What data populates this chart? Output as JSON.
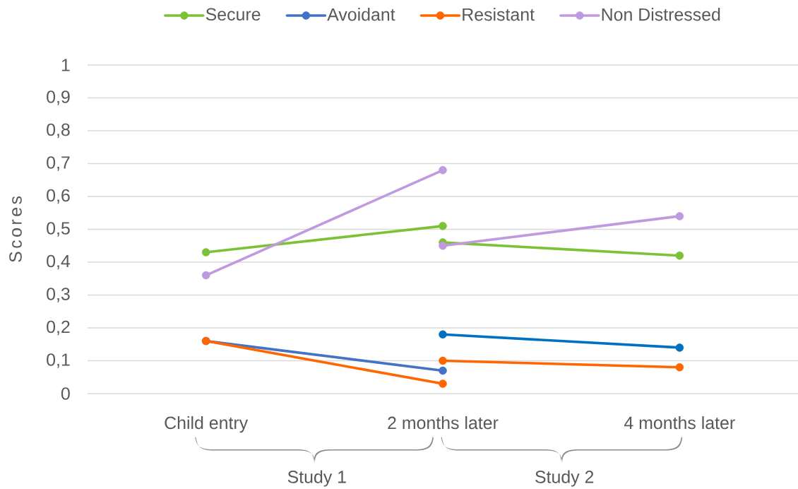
{
  "chart_data": {
    "type": "line",
    "ylabel": "Scores",
    "categories": [
      "Child entry",
      "2 months later",
      "4 months later"
    ],
    "series": [
      {
        "name": "Secure",
        "color": "#7dc236",
        "values": [
          0.43,
          0.51,
          null
        ]
      },
      {
        "name": "Avoidant",
        "color": "#4472c4",
        "values": [
          0.16,
          0.07,
          null
        ]
      },
      {
        "name": "Resistant",
        "color": "#ff6600",
        "values": [
          0.16,
          0.03,
          null
        ]
      },
      {
        "name": "Non Distressed",
        "color": "#c09ae0",
        "values": [
          0.36,
          0.68,
          null
        ]
      },
      {
        "color": "#7dc236",
        "values": [
          null,
          0.46,
          0.42
        ]
      },
      {
        "color": "#0070c0",
        "values": [
          null,
          0.18,
          0.14
        ]
      },
      {
        "color": "#ff6600",
        "values": [
          null,
          0.1,
          0.08
        ]
      },
      {
        "color": "#c09ae0",
        "values": [
          null,
          0.45,
          0.54
        ]
      }
    ],
    "ylim": [
      0,
      1
    ],
    "yticks": [
      0,
      {
        "value": 0.1,
        "label": "0,1"
      },
      {
        "value": 0.2,
        "label": "0,2"
      },
      {
        "value": 0.3,
        "label": "0,3"
      },
      {
        "value": 0.4,
        "label": "0,4"
      },
      {
        "value": 0.5,
        "label": "0,5"
      },
      {
        "value": 0.6,
        "label": "0,6"
      },
      {
        "value": 0.7,
        "label": "0,7"
      },
      {
        "value": 0.8,
        "label": "0,8"
      },
      {
        "value": 0.9,
        "label": "0,9"
      },
      1
    ],
    "grid": "y",
    "legend": "top",
    "marker": "circle",
    "line_style": "solid",
    "annotations": [
      "Study 1",
      "Study 2"
    ]
  }
}
